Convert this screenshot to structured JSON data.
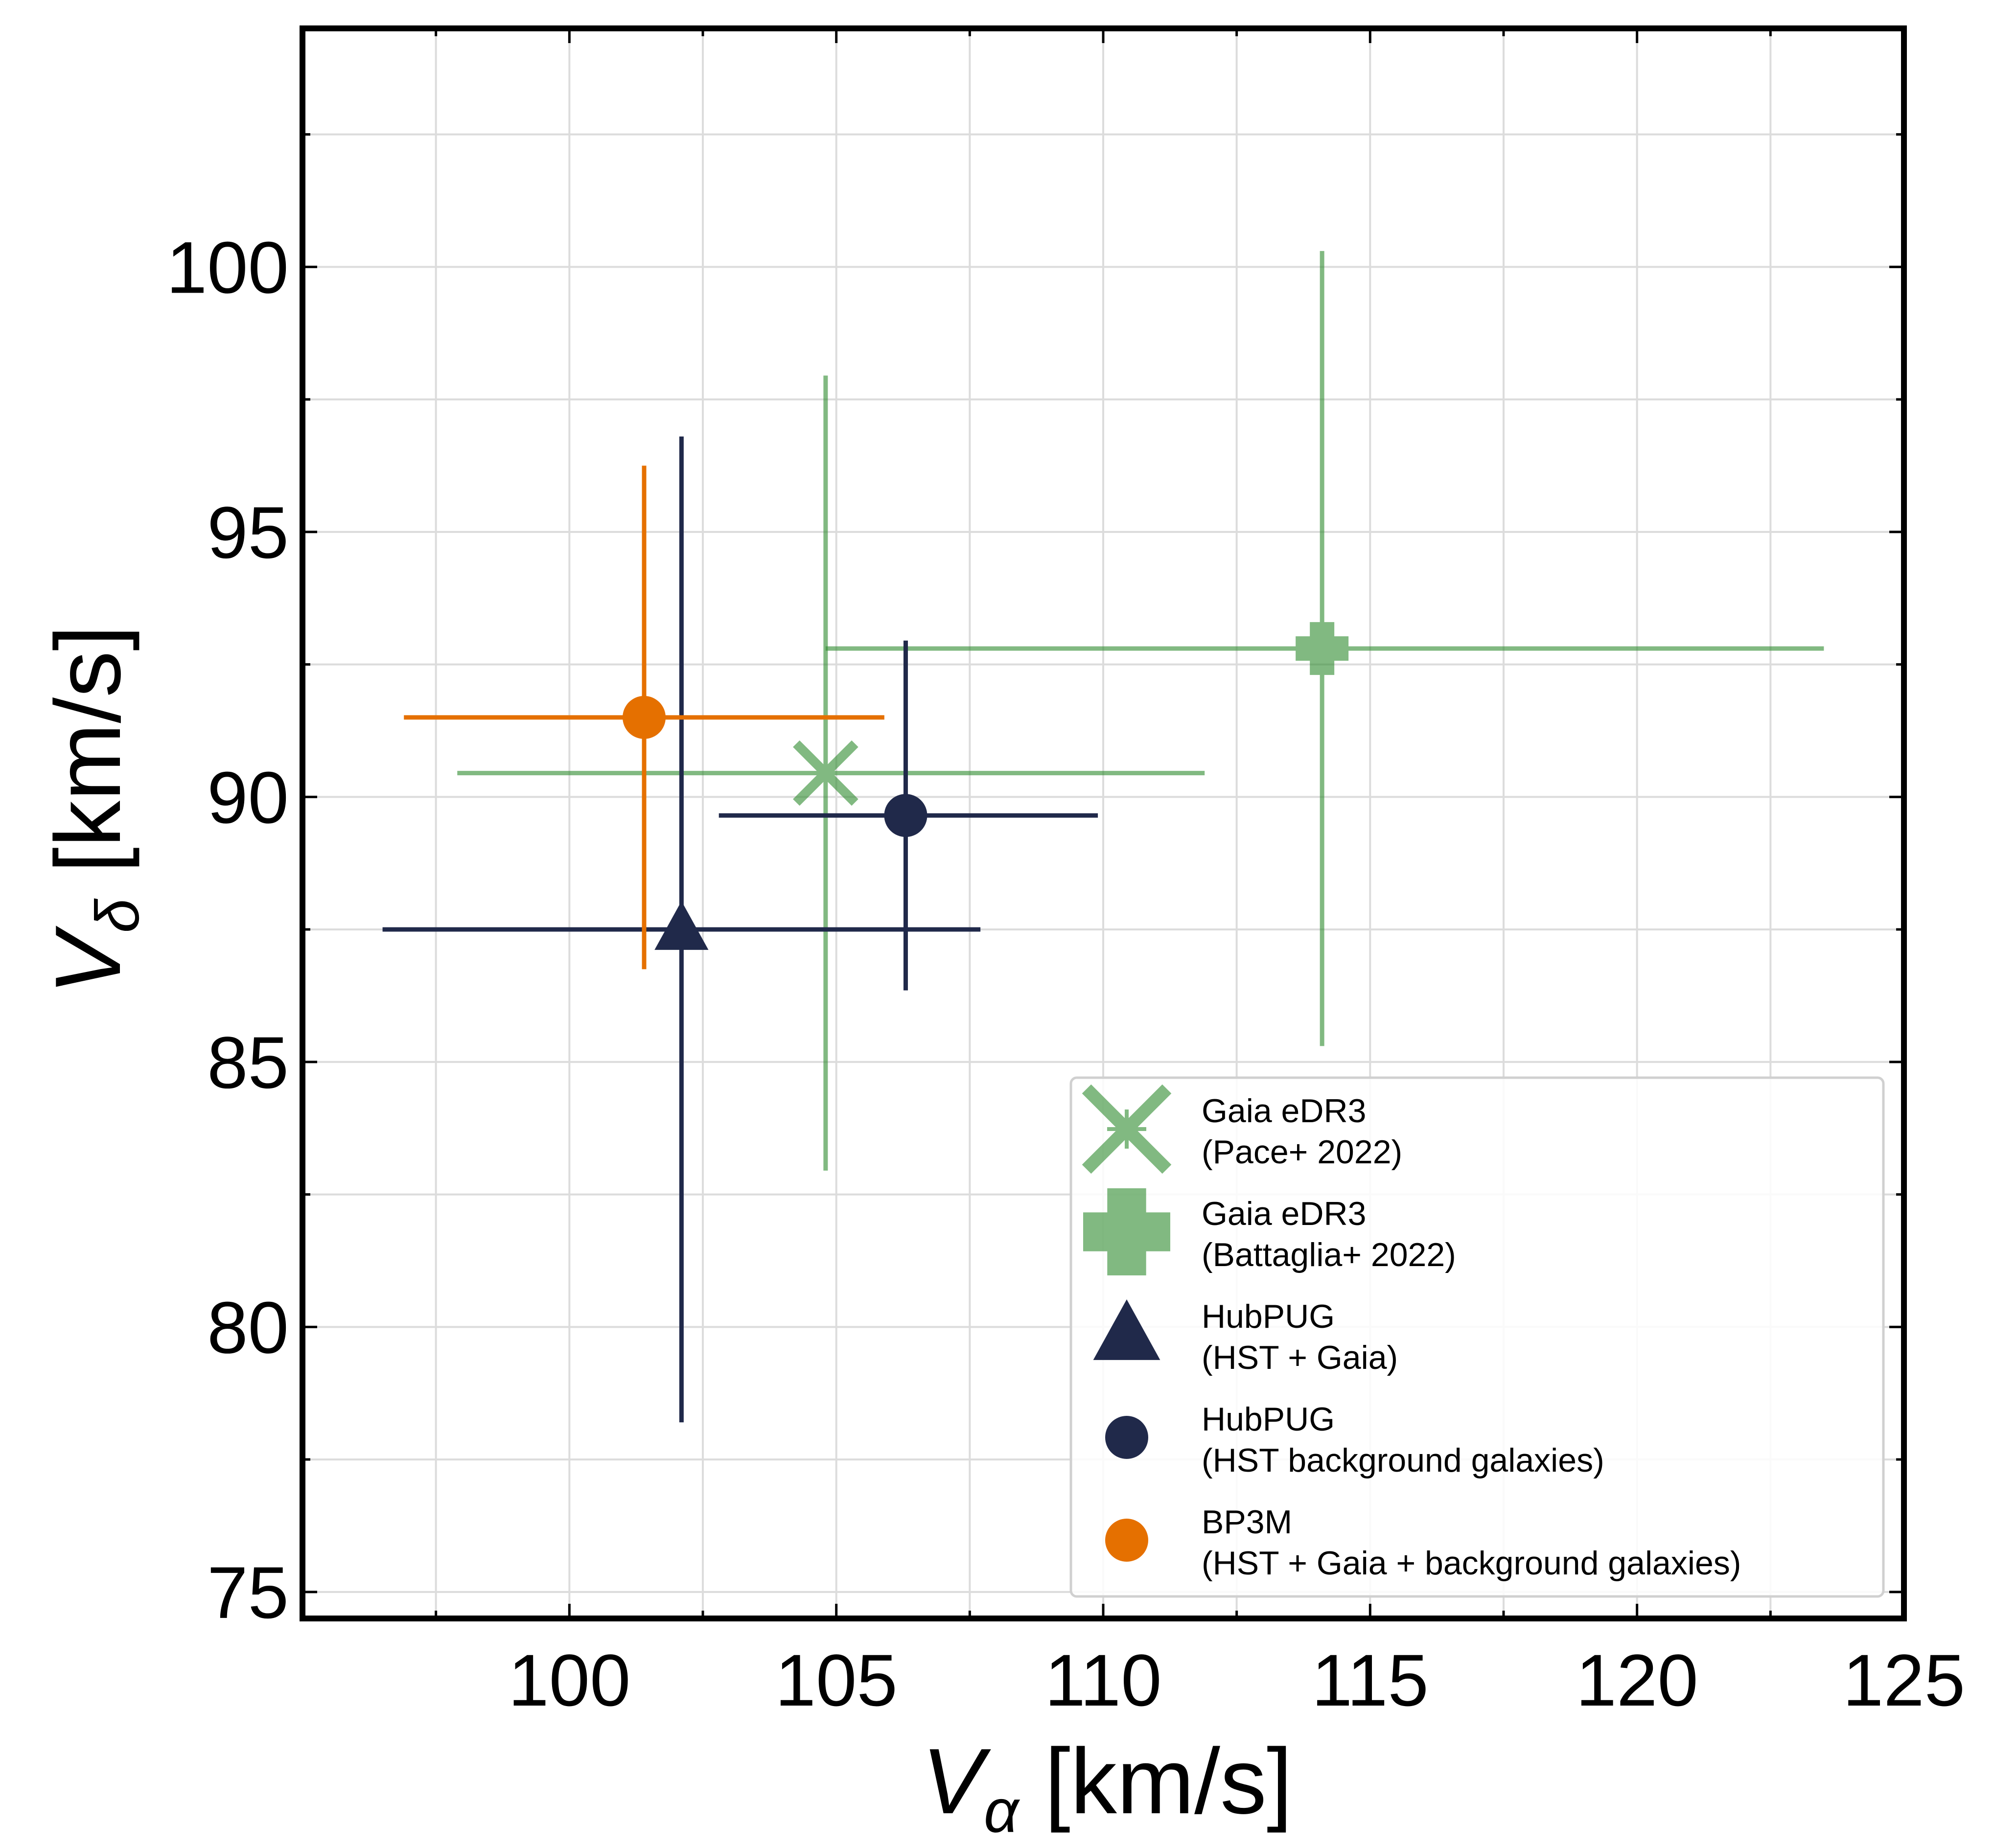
{
  "chart_data": {
    "type": "scatter",
    "title": "",
    "xlabel": {
      "symbol": "V",
      "subscript": "α",
      "unit": "[km/s]"
    },
    "ylabel": {
      "symbol": "V",
      "subscript": "δ",
      "unit": "[km/s]"
    },
    "xlim": [
      95,
      125
    ],
    "ylim": [
      74.5,
      104.5
    ],
    "xticks": [
      100,
      105,
      110,
      115,
      120,
      125
    ],
    "yticks": [
      75,
      80,
      85,
      90,
      95,
      100
    ],
    "grid": true,
    "legend_position": "lower-right",
    "series": [
      {
        "name": "Gaia eDR3 (Pace+ 2022)",
        "legend_lines": [
          "Gaia eDR3",
          "(Pace+ 2022)"
        ],
        "marker": "x",
        "color": "#2e8b2e",
        "alpha": 0.6,
        "x": 104.8,
        "y": 90.45,
        "xerr": [
          6.9,
          7.1
        ],
        "yerr": [
          7.5,
          7.5
        ]
      },
      {
        "name": "Gaia eDR3 (Battaglia+ 2022)",
        "legend_lines": [
          "Gaia eDR3",
          "(Battaglia+ 2022)"
        ],
        "marker": "plus",
        "color": "#2e8b2e",
        "alpha": 0.6,
        "x": 114.1,
        "y": 92.8,
        "xerr": [
          9.3,
          9.4
        ],
        "yerr": [
          7.5,
          7.5
        ]
      },
      {
        "name": "HubPUG (HST + Gaia)",
        "legend_lines": [
          "HubPUG",
          "(HST + Gaia)"
        ],
        "marker": "triangle",
        "color": "#20294a",
        "alpha": 1,
        "x": 102.1,
        "y": 87.5,
        "xerr": [
          5.6,
          5.6
        ],
        "yerr": [
          9.3,
          9.3
        ]
      },
      {
        "name": "HubPUG (HST background galaxies)",
        "legend_lines": [
          "HubPUG",
          "(HST background galaxies)"
        ],
        "marker": "circle",
        "color": "#20294a",
        "alpha": 1,
        "x": 106.3,
        "y": 89.65,
        "xerr": [
          3.5,
          3.6
        ],
        "yerr": [
          3.3,
          3.3
        ]
      },
      {
        "name": "BP3M (HST + Gaia + background galaxies)",
        "legend_lines": [
          "BP3M",
          "(HST + Gaia + background galaxies)"
        ],
        "marker": "circle",
        "color": "#e57000",
        "alpha": 1,
        "x": 101.4,
        "y": 91.5,
        "xerr": [
          4.5,
          4.5
        ],
        "yerr": [
          4.75,
          4.75
        ]
      }
    ]
  }
}
